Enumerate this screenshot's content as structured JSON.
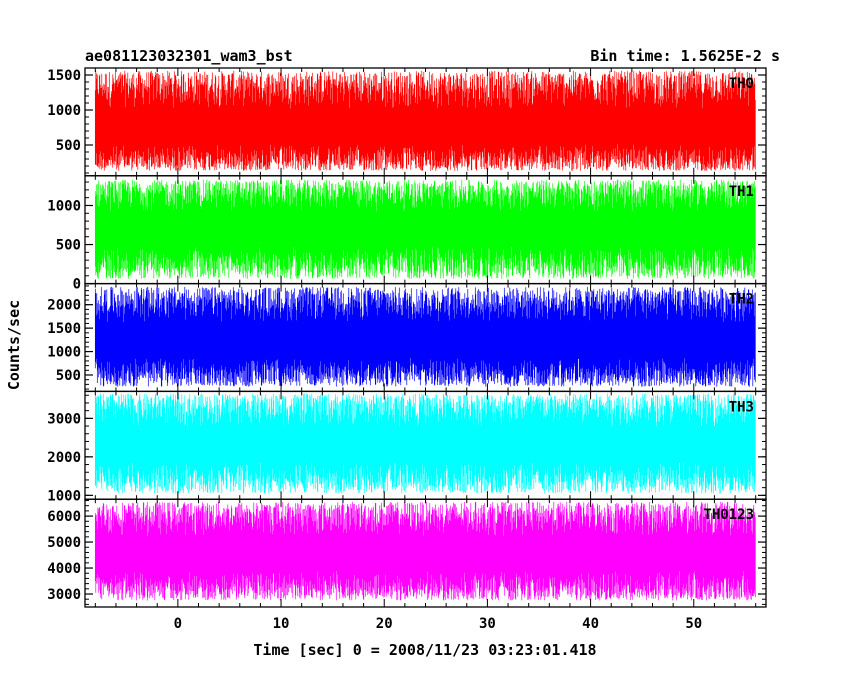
{
  "header": {
    "title": "ae081123032301_wam3_bst",
    "bin_time": "Bin time: 1.5625E-2 s"
  },
  "chart_data": {
    "type": "line",
    "ylabel": "Counts/sec",
    "xlabel": "Time [sec] 0 = 2008/11/23 03:23:01.418",
    "xlim": [
      -9,
      57
    ],
    "x_data_range": [
      -8,
      56
    ],
    "x_ticks": [
      0,
      10,
      20,
      30,
      40,
      50
    ],
    "panels": [
      {
        "name": "TH0",
        "color": "#ff0000",
        "ylim": [
          60,
          1600
        ],
        "yticks": [
          500,
          1000,
          1500
        ],
        "mean": 720,
        "low": 130,
        "high": 1560
      },
      {
        "name": "TH1",
        "color": "#00ff00",
        "ylim": [
          0,
          1380
        ],
        "yticks": [
          0,
          500,
          1000
        ],
        "mean": 700,
        "low": 60,
        "high": 1330
      },
      {
        "name": "TH2",
        "color": "#0000ff",
        "ylim": [
          150,
          2450
        ],
        "yticks": [
          500,
          1000,
          1500,
          2000
        ],
        "mean": 1200,
        "low": 250,
        "high": 2380
      },
      {
        "name": "TH3",
        "color": "#00ffff",
        "ylim": [
          900,
          3700
        ],
        "yticks": [
          1000,
          2000,
          3000
        ],
        "mean": 2300,
        "low": 1050,
        "high": 3650
      },
      {
        "name": "TH0123",
        "color": "#ff00ff",
        "ylim": [
          2500,
          6650
        ],
        "yticks": [
          3000,
          4000,
          5000,
          6000
        ],
        "mean": 4500,
        "low": 2750,
        "high": 6550
      }
    ]
  }
}
